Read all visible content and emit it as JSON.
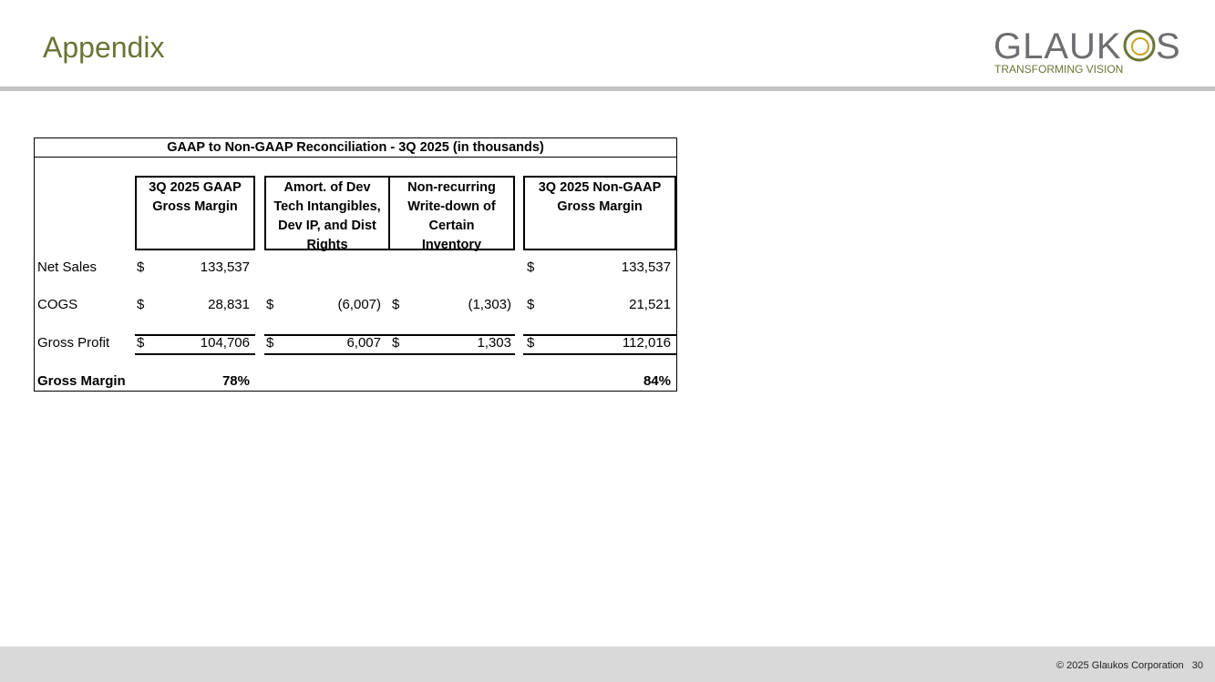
{
  "header": {
    "title": "Appendix",
    "logo_text": "GLAUKOS",
    "logo_tagline": "TRANSFORMING VISION",
    "accent": "#6b7436"
  },
  "table": {
    "title": "GAAP to Non-GAAP Reconciliation - 3Q 2025 (in thousands)",
    "columns": [
      "3Q 2025 GAAP Gross Margin",
      "Amort. of Dev Tech Intangibles, Dev IP, and Dist Rights",
      "Non-recurring Write-down of Certain Inventory",
      "3Q 2025 Non-GAAP Gross Margin"
    ],
    "rows": [
      {
        "label": "Net Sales",
        "cells": [
          {
            "cur": "$",
            "val": "133,537"
          },
          {
            "cur": "",
            "val": ""
          },
          {
            "cur": "",
            "val": ""
          },
          {
            "cur": "$",
            "val": "133,537"
          }
        ]
      },
      {
        "label": "COGS",
        "cells": [
          {
            "cur": "$",
            "val": "28,831"
          },
          {
            "cur": "$",
            "val": "(6,007)"
          },
          {
            "cur": "$",
            "val": "(1,303)"
          },
          {
            "cur": "$",
            "val": "21,521"
          }
        ]
      },
      {
        "label": "Gross Profit",
        "cells": [
          {
            "cur": "$",
            "val": "104,706"
          },
          {
            "cur": "$",
            "val": "6,007"
          },
          {
            "cur": "$",
            "val": "1,303"
          },
          {
            "cur": "$",
            "val": "112,016"
          }
        ]
      },
      {
        "label": "Gross Margin",
        "cells": [
          {
            "cur": "",
            "val": "78%"
          },
          {
            "cur": "",
            "val": ""
          },
          {
            "cur": "",
            "val": ""
          },
          {
            "cur": "",
            "val": "84%"
          }
        ]
      }
    ]
  },
  "footer": {
    "copyright": "© 2025 Glaukos Corporation",
    "page": "30"
  }
}
